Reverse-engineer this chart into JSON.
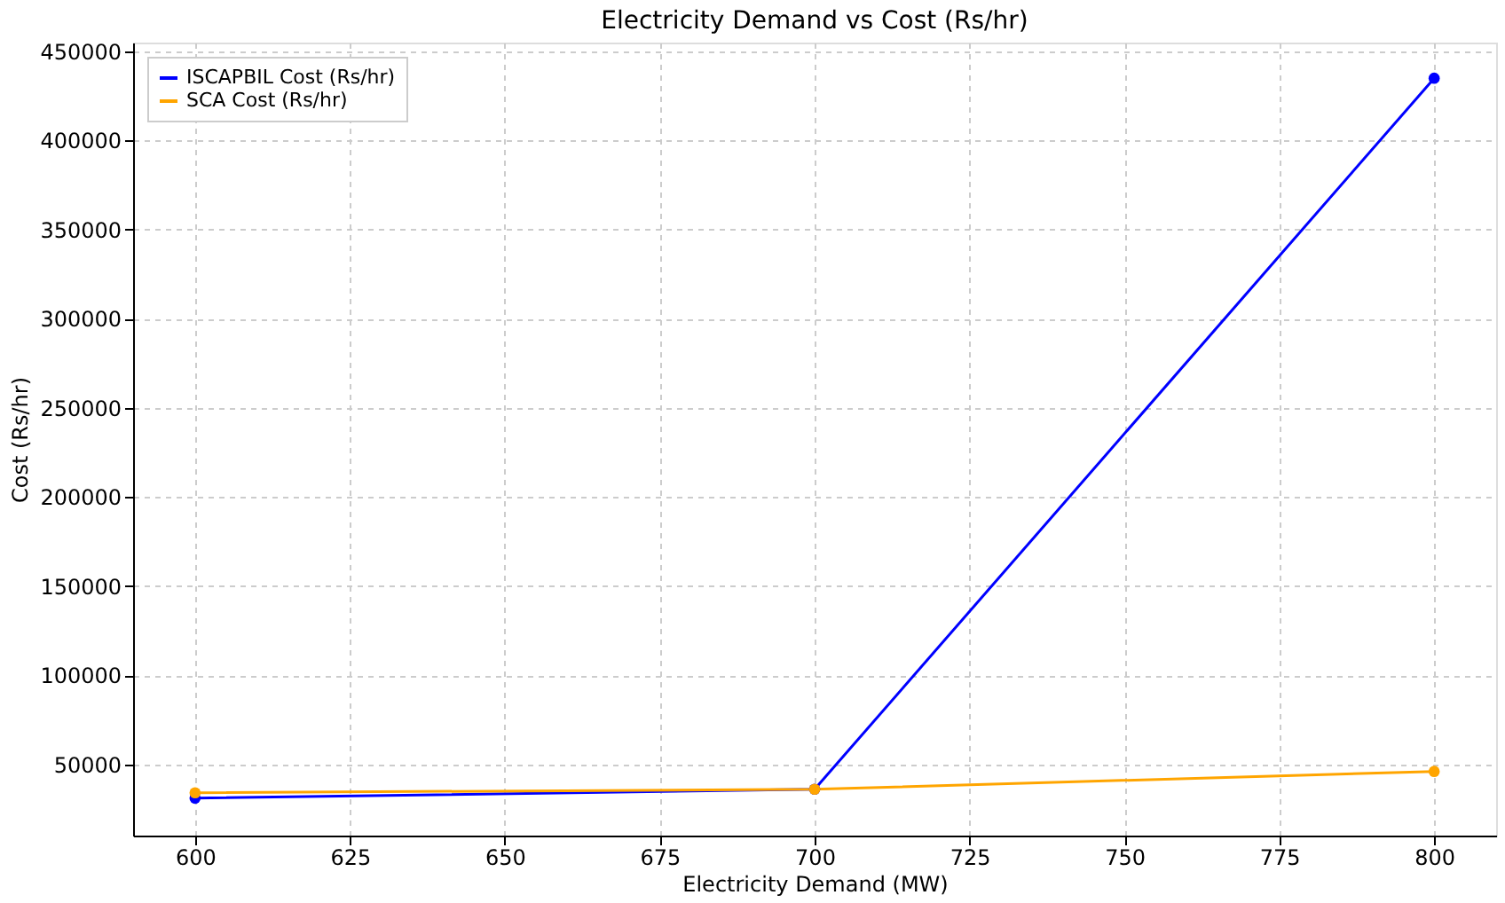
{
  "chart_data": {
    "type": "line",
    "title": "Electricity Demand vs Cost (Rs/hr)",
    "xlabel": "Electricity Demand (MW)",
    "ylabel": "Cost (Rs/hr)",
    "x": [
      600,
      700,
      800
    ],
    "series": [
      {
        "name": "ISCAPBIL Cost (Rs/hr)",
        "color": "#0000ff",
        "values": [
          31000,
          36000,
          435000
        ]
      },
      {
        "name": "SCA Cost (Rs/hr)",
        "color": "#ffa500",
        "values": [
          34000,
          36000,
          46000
        ]
      }
    ],
    "xlim": [
      590,
      810
    ],
    "xticks": [
      600,
      625,
      650,
      675,
      700,
      725,
      750,
      775,
      800
    ],
    "ylim": [
      10000,
      455000
    ],
    "yticks": [
      50000,
      100000,
      150000,
      200000,
      250000,
      300000,
      350000,
      400000,
      450000
    ],
    "grid": true,
    "legend": "top left",
    "marker": "circle",
    "line_style": "solid"
  }
}
